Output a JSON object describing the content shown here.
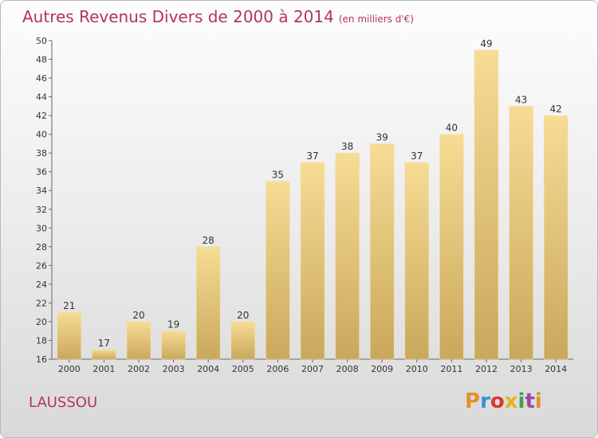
{
  "chart_data": {
    "type": "bar",
    "title": "Autres Revenus Divers de 2000 à 2014",
    "subtitle": "(en milliers d'€)",
    "categories": [
      "2000",
      "2001",
      "2002",
      "2003",
      "2004",
      "2005",
      "2006",
      "2007",
      "2008",
      "2009",
      "2010",
      "2011",
      "2012",
      "2013",
      "2014"
    ],
    "values": [
      21,
      17,
      20,
      19,
      28,
      20,
      35,
      37,
      38,
      39,
      37,
      40,
      49,
      43,
      42
    ],
    "ylim": [
      16,
      50
    ],
    "yticks": [
      16,
      18,
      20,
      22,
      24,
      26,
      28,
      30,
      32,
      34,
      36,
      38,
      40,
      42,
      44,
      46,
      48,
      50
    ],
    "grid": false,
    "bar_color": "#e8c879",
    "data_labels": true
  },
  "footer": {
    "commune": "LAUSSOU",
    "logo": "Proxiti",
    "logo_colors": [
      "#e0922a",
      "#3b8ed0",
      "#d93a2c",
      "#e8b21a",
      "#3aa544",
      "#9a4aa0",
      "#e0922a"
    ]
  }
}
